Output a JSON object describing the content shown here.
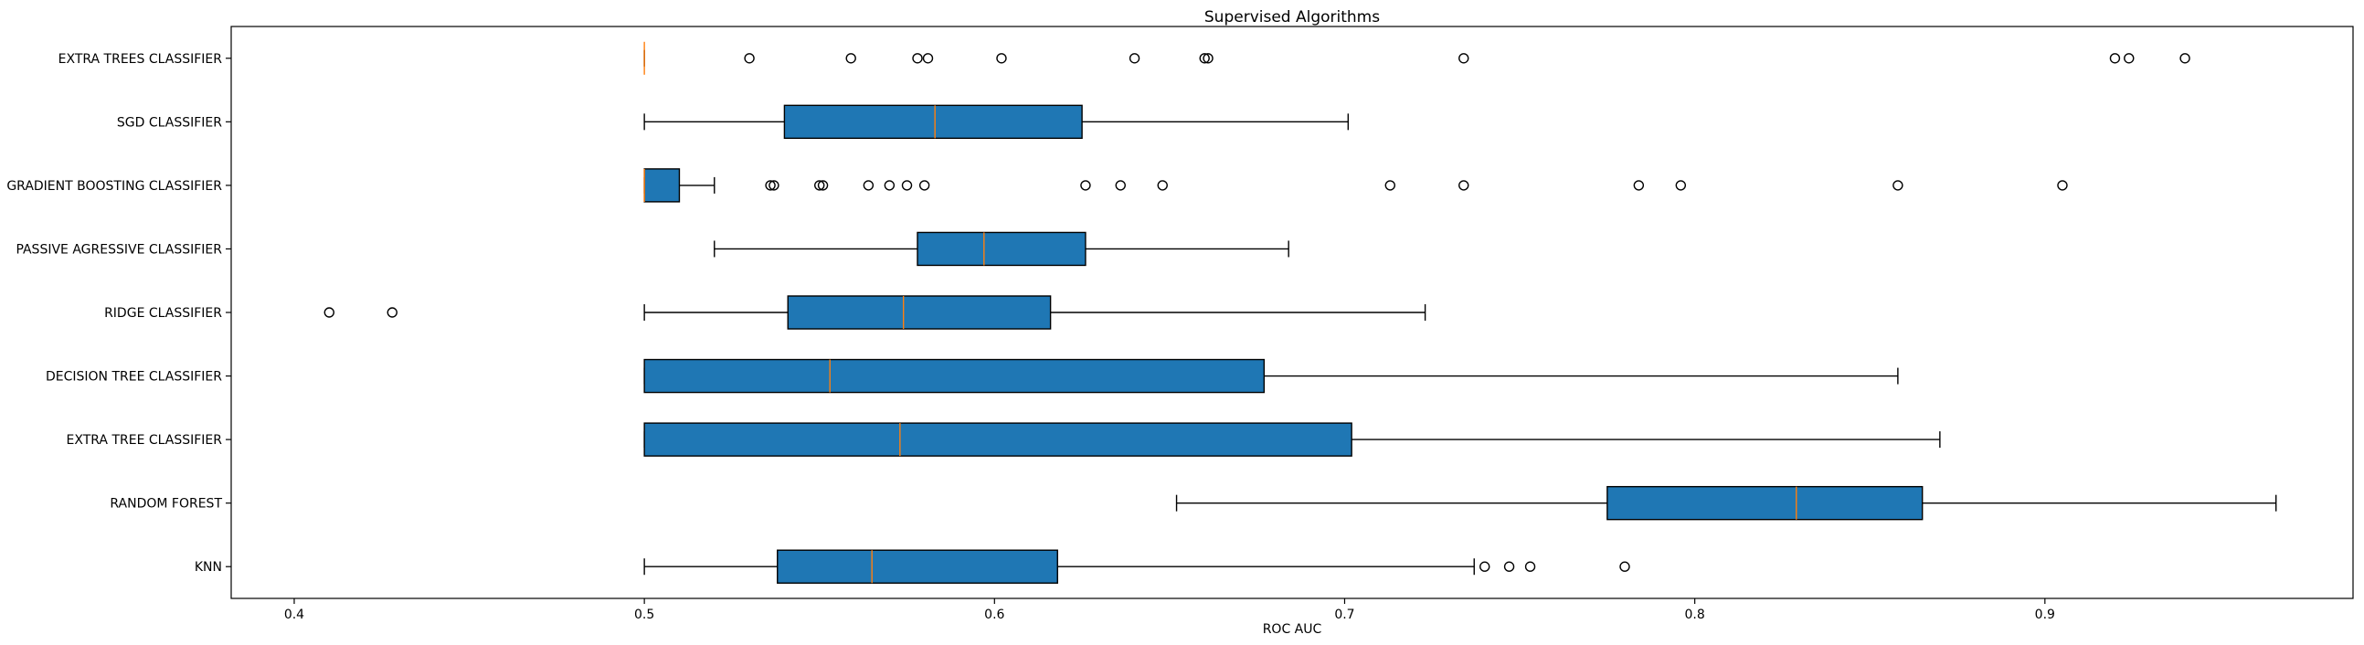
{
  "chart_data": {
    "type": "boxplot",
    "orientation": "horizontal",
    "title": "Supervised Algorithms",
    "xlabel": "ROC AUC",
    "ylabel": "",
    "xlim": [
      0.382,
      0.988
    ],
    "xticks": [
      0.4,
      0.5,
      0.6,
      0.7,
      0.8,
      0.9
    ],
    "xtick_labels": [
      "0.4",
      "0.5",
      "0.6",
      "0.7",
      "0.8",
      "0.9"
    ],
    "grid": false,
    "box_color": "#1f77b4",
    "median_color": "#ff7f0e",
    "series": [
      {
        "name": "KNN",
        "whisker_low": 0.5,
        "q1": 0.538,
        "median": 0.565,
        "q3": 0.618,
        "whisker_high": 0.737,
        "outliers": [
          0.74,
          0.747,
          0.753,
          0.78
        ]
      },
      {
        "name": "RANDOM FOREST",
        "whisker_low": 0.652,
        "q1": 0.775,
        "median": 0.829,
        "q3": 0.865,
        "whisker_high": 0.966,
        "outliers": []
      },
      {
        "name": "EXTRA TREE CLASSIFIER",
        "whisker_low": 0.5,
        "q1": 0.5,
        "median": 0.573,
        "q3": 0.702,
        "whisker_high": 0.87,
        "outliers": []
      },
      {
        "name": "DECISION TREE CLASSIFIER",
        "whisker_low": 0.5,
        "q1": 0.5,
        "median": 0.553,
        "q3": 0.677,
        "whisker_high": 0.858,
        "outliers": []
      },
      {
        "name": "RIDGE CLASSIFIER",
        "whisker_low": 0.5,
        "q1": 0.541,
        "median": 0.574,
        "q3": 0.616,
        "whisker_high": 0.723,
        "outliers": [
          0.41,
          0.428
        ]
      },
      {
        "name": "PASSIVE AGRESSIVE CLASSIFIER",
        "whisker_low": 0.52,
        "q1": 0.578,
        "median": 0.597,
        "q3": 0.626,
        "whisker_high": 0.684,
        "outliers": []
      },
      {
        "name": "GRADIENT BOOSTING CLASSIFIER",
        "whisker_low": 0.5,
        "q1": 0.5,
        "median": 0.5,
        "q3": 0.51,
        "whisker_high": 0.52,
        "outliers": [
          0.536,
          0.537,
          0.55,
          0.551,
          0.564,
          0.57,
          0.575,
          0.58,
          0.626,
          0.636,
          0.648,
          0.713,
          0.734,
          0.784,
          0.796,
          0.858,
          0.905
        ]
      },
      {
        "name": "SGD CLASSIFIER",
        "whisker_low": 0.5,
        "q1": 0.54,
        "median": 0.583,
        "q3": 0.625,
        "whisker_high": 0.701,
        "outliers": []
      },
      {
        "name": "EXTRA TREES CLASSIFIER",
        "whisker_low": 0.5,
        "q1": 0.5,
        "median": 0.5,
        "q3": 0.5,
        "whisker_high": 0.5,
        "outliers": [
          0.53,
          0.559,
          0.578,
          0.581,
          0.602,
          0.64,
          0.66,
          0.661,
          0.734,
          0.92,
          0.924,
          0.94
        ]
      }
    ]
  }
}
